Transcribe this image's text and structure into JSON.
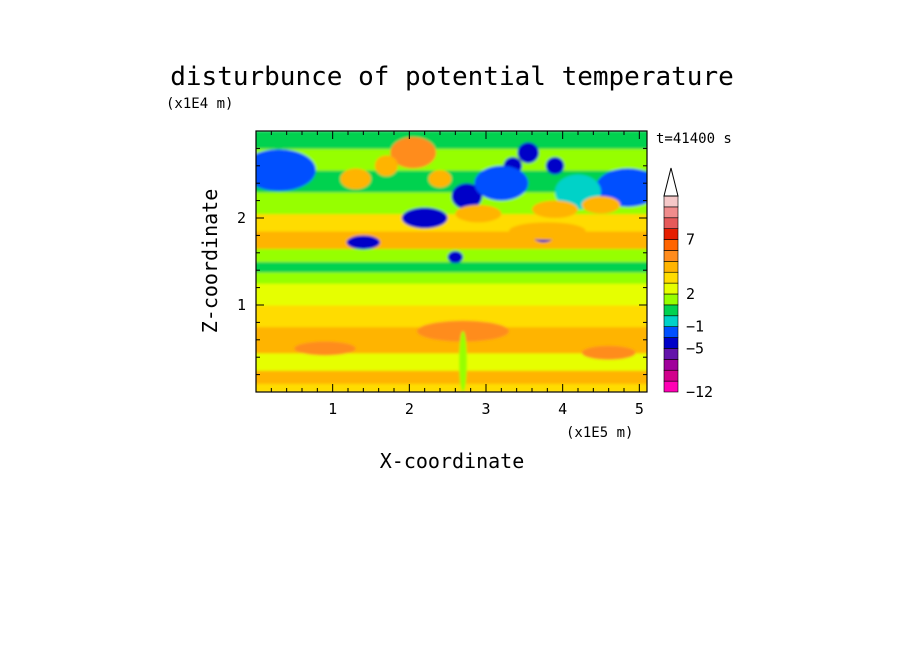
{
  "chart_data": {
    "type": "heatmap",
    "title": "disturbunce of potential temperature",
    "xlabel": "X-coordinate",
    "ylabel": "Z-coordinate",
    "x_unit": "(x1E5 m)",
    "y_unit": "(x1E4 m)",
    "time_label": "t=41400 s",
    "xlim": [
      0,
      5.1
    ],
    "ylim": [
      0,
      3.0
    ],
    "x_ticks": [
      1,
      2,
      3,
      4,
      5
    ],
    "y_ticks": [
      1,
      2
    ],
    "colorbar": {
      "tick_labels": [
        "7",
        "2",
        "−1",
        "−5",
        "−12"
      ],
      "tick_values": [
        7,
        2,
        -1,
        -5,
        -12
      ],
      "levels": [
        {
          "value": -12,
          "color": "#ff00b4"
        },
        {
          "value": -11,
          "color": "#d2008c"
        },
        {
          "value": -9,
          "color": "#a0009b"
        },
        {
          "value": -7,
          "color": "#6414aa"
        },
        {
          "value": -5,
          "color": "#0000c8"
        },
        {
          "value": -3,
          "color": "#0050ff"
        },
        {
          "value": -1,
          "color": "#00d2c8"
        },
        {
          "value": 0,
          "color": "#00d250"
        },
        {
          "value": 1,
          "color": "#96ff00"
        },
        {
          "value": 2,
          "color": "#e6ff00"
        },
        {
          "value": 3,
          "color": "#ffdc00"
        },
        {
          "value": 4,
          "color": "#ffb400"
        },
        {
          "value": 5,
          "color": "#ff8c1e"
        },
        {
          "value": 6,
          "color": "#ff6400"
        },
        {
          "value": 7,
          "color": "#e61e00"
        },
        {
          "value": 8,
          "color": "#e65a5a"
        },
        {
          "value": 9,
          "color": "#f08c8c"
        },
        {
          "value": 10,
          "color": "#f5c8c8"
        }
      ]
    },
    "field": {
      "background_levels": [
        {
          "z": [
            0.0,
            0.1
          ],
          "level": 3
        },
        {
          "z": [
            0.1,
            0.25
          ],
          "level": 4
        },
        {
          "z": [
            0.25,
            0.45
          ],
          "level": 2
        },
        {
          "z": [
            0.45,
            0.75
          ],
          "level": 4
        },
        {
          "z": [
            0.75,
            1.0
          ],
          "level": 3
        },
        {
          "z": [
            1.0,
            1.25
          ],
          "level": 2
        },
        {
          "z": [
            1.25,
            1.38
          ],
          "level": 1
        },
        {
          "z": [
            1.38,
            1.5
          ],
          "level": 0
        },
        {
          "z": [
            1.5,
            1.65
          ],
          "level": 1
        },
        {
          "z": [
            1.65,
            1.85
          ],
          "level": 4
        },
        {
          "z": [
            1.85,
            2.05
          ],
          "level": 3
        },
        {
          "z": [
            2.05,
            2.3
          ],
          "level": 1
        },
        {
          "z": [
            2.3,
            2.55
          ],
          "level": 0
        },
        {
          "z": [
            2.55,
            2.8
          ],
          "level": 1
        },
        {
          "z": [
            2.8,
            3.0
          ],
          "level": 0
        }
      ],
      "features": [
        {
          "x": 0.3,
          "z": 2.55,
          "rx": 0.35,
          "rz": 0.15,
          "level": -5
        },
        {
          "x": 0.3,
          "z": 2.55,
          "rx": 0.48,
          "rz": 0.24,
          "level": -3
        },
        {
          "x": 4.85,
          "z": 2.35,
          "rx": 0.3,
          "rz": 0.13,
          "level": -5
        },
        {
          "x": 4.85,
          "z": 2.35,
          "rx": 0.42,
          "rz": 0.22,
          "level": -3
        },
        {
          "x": 2.2,
          "z": 2.0,
          "rx": 0.3,
          "rz": 0.12,
          "level": -5
        },
        {
          "x": 1.4,
          "z": 1.72,
          "rx": 0.22,
          "rz": 0.08,
          "level": -5
        },
        {
          "x": 2.75,
          "z": 2.25,
          "rx": 0.2,
          "rz": 0.15,
          "level": -5
        },
        {
          "x": 3.35,
          "z": 2.6,
          "rx": 0.12,
          "rz": 0.1,
          "level": -5
        },
        {
          "x": 3.55,
          "z": 2.75,
          "rx": 0.14,
          "rz": 0.12,
          "level": -5
        },
        {
          "x": 3.9,
          "z": 2.6,
          "rx": 0.12,
          "rz": 0.1,
          "level": -5
        },
        {
          "x": 3.75,
          "z": 1.8,
          "rx": 0.14,
          "rz": 0.08,
          "level": -5
        },
        {
          "x": 2.6,
          "z": 1.55,
          "rx": 0.1,
          "rz": 0.07,
          "level": -5
        },
        {
          "x": 3.2,
          "z": 2.4,
          "rx": 0.35,
          "rz": 0.2,
          "level": -3
        },
        {
          "x": 4.2,
          "z": 2.3,
          "rx": 0.3,
          "rz": 0.2,
          "level": -1
        },
        {
          "x": 2.05,
          "z": 2.75,
          "rx": 0.3,
          "rz": 0.18,
          "level": 5
        },
        {
          "x": 1.3,
          "z": 2.45,
          "rx": 0.2,
          "rz": 0.12,
          "level": 4
        },
        {
          "x": 1.7,
          "z": 2.6,
          "rx": 0.15,
          "rz": 0.12,
          "level": 4
        },
        {
          "x": 3.9,
          "z": 2.1,
          "rx": 0.3,
          "rz": 0.1,
          "level": 4
        },
        {
          "x": 4.5,
          "z": 2.15,
          "rx": 0.25,
          "rz": 0.1,
          "level": 4
        },
        {
          "x": 2.9,
          "z": 2.05,
          "rx": 0.3,
          "rz": 0.1,
          "level": 4
        },
        {
          "x": 2.4,
          "z": 2.45,
          "rx": 0.15,
          "rz": 0.1,
          "level": 4
        },
        {
          "x": 3.8,
          "z": 1.85,
          "rx": 0.5,
          "rz": 0.1,
          "level": 4
        },
        {
          "x": 2.7,
          "z": 0.7,
          "rx": 0.6,
          "rz": 0.12,
          "level": 5
        },
        {
          "x": 0.9,
          "z": 0.5,
          "rx": 0.4,
          "rz": 0.08,
          "level": 5
        },
        {
          "x": 4.6,
          "z": 0.45,
          "rx": 0.35,
          "rz": 0.08,
          "level": 5
        },
        {
          "x": 2.7,
          "z": 0.35,
          "rx": 0.05,
          "rz": 0.35,
          "level": 1
        }
      ]
    }
  }
}
